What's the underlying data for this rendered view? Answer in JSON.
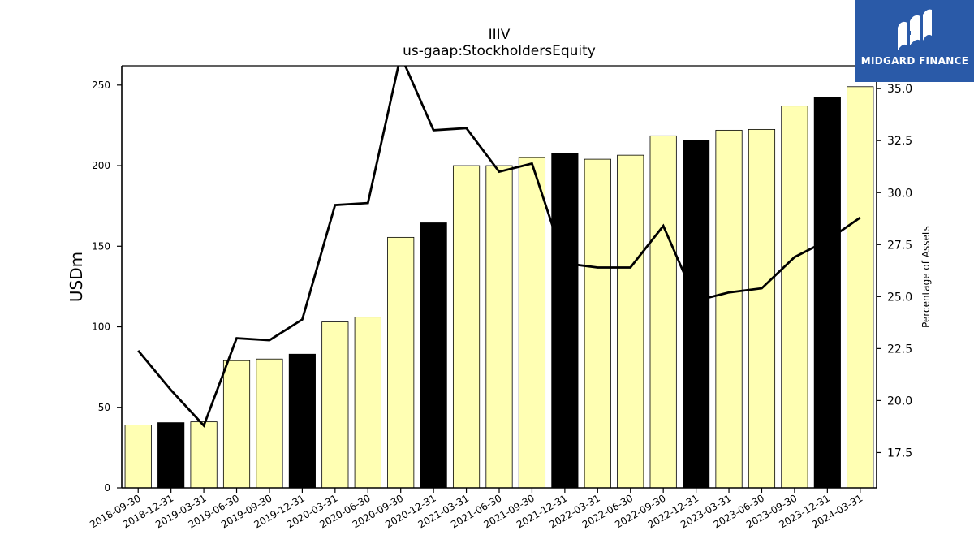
{
  "logo": {
    "text": "MIDGARD FINANCE",
    "icon": "midgard-logo-icon",
    "background": "#2a5aa8"
  },
  "chart_data": {
    "type": "bar",
    "title": "IIIV",
    "subtitle": "us-gaap:StockholdersEquity",
    "ylabel": "USDm",
    "ylabel_right": "Percentage of Assets",
    "ylim": [
      0,
      262
    ],
    "ylim_right": [
      15.8,
      36.1
    ],
    "yticks": [
      0,
      50,
      100,
      150,
      200,
      250
    ],
    "yticks_right": [
      "17.5",
      "20.0",
      "22.5",
      "25.0",
      "27.5",
      "30.0",
      "32.5",
      "35.0"
    ],
    "grid": false,
    "categories": [
      "2018-09-30",
      "2018-12-31",
      "2019-03-31",
      "2019-06-30",
      "2019-09-30",
      "2019-12-31",
      "2020-03-31",
      "2020-06-30",
      "2020-09-30",
      "2020-12-31",
      "2021-03-31",
      "2021-06-30",
      "2021-09-30",
      "2021-12-31",
      "2022-03-31",
      "2022-06-30",
      "2022-09-30",
      "2022-12-31",
      "2023-03-31",
      "2023-06-30",
      "2023-09-30",
      "2023-12-31",
      "2024-03-31"
    ],
    "series": [
      {
        "type": "bar",
        "values": [
          39,
          40.5,
          41,
          79,
          80,
          83,
          103,
          106,
          155.5,
          164.5,
          200,
          200,
          205,
          207.5,
          204,
          206.5,
          218.5,
          215.5,
          222,
          222.5,
          237,
          242.5,
          249
        ],
        "highlight": [
          false,
          true,
          false,
          false,
          false,
          true,
          false,
          false,
          false,
          true,
          false,
          false,
          false,
          true,
          false,
          false,
          false,
          true,
          false,
          false,
          false,
          true,
          false
        ],
        "color": "#ffffb3",
        "highlight_color": "#000000"
      },
      {
        "type": "line",
        "axis": "right",
        "values": [
          22.4,
          20.5,
          18.8,
          23.0,
          22.9,
          23.9,
          29.4,
          29.5,
          36.6,
          33.0,
          33.1,
          31.0,
          31.4,
          26.6,
          26.4,
          26.4,
          28.4,
          24.8,
          25.2,
          25.4,
          26.9,
          27.7,
          28.8
        ],
        "color": "#000000"
      }
    ]
  }
}
